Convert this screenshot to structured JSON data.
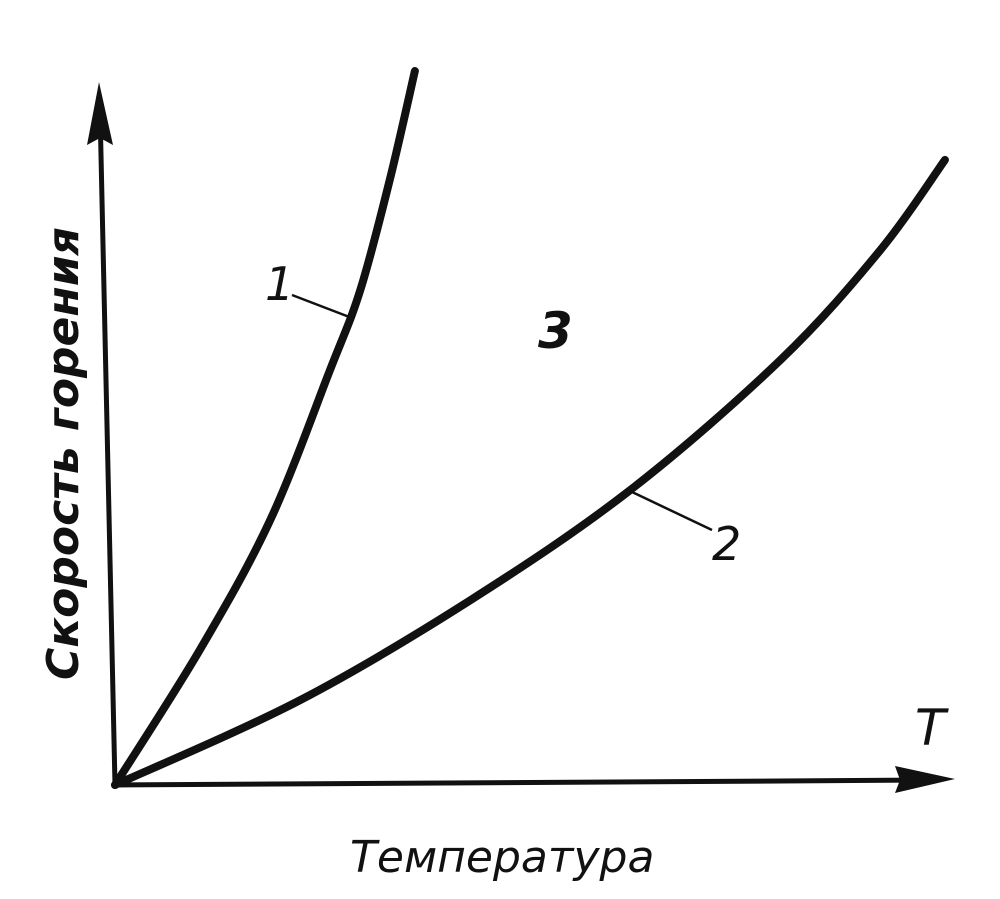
{
  "chart_data": {
    "type": "line",
    "title": "",
    "xlabel": "Температура",
    "ylabel": "Скорость горения",
    "x_axis_symbol": "T",
    "xlim": [
      0,
      10
    ],
    "ylim": [
      0,
      10
    ],
    "grid": false,
    "ticks": false,
    "region_label": "3",
    "series": [
      {
        "name": "1",
        "x": [
          0,
          1.01,
          1.85,
          2.56,
          2.92,
          3.27,
          3.57
        ],
        "y": [
          0,
          1.93,
          3.79,
          5.93,
          7.07,
          8.64,
          10.2
        ]
      },
      {
        "name": "2",
        "x": [
          0,
          2.2,
          4.23,
          6.13,
          7.92,
          9.11,
          9.88
        ],
        "y": [
          0,
          1.21,
          2.64,
          4.21,
          6.07,
          7.64,
          8.93
        ]
      }
    ],
    "colors": {
      "line": "#111111",
      "background": "#ffffff"
    }
  }
}
